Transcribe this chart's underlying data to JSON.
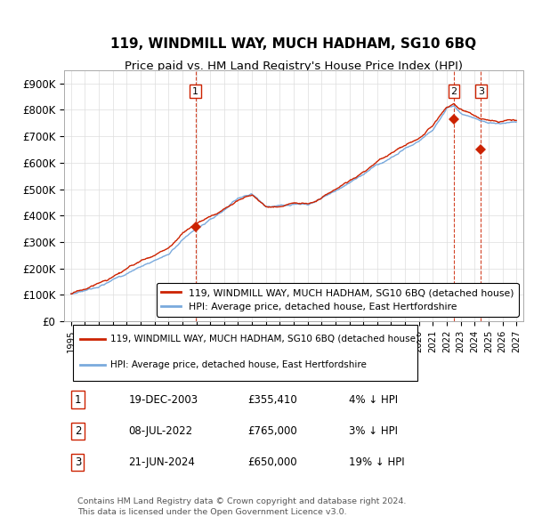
{
  "title": "119, WINDMILL WAY, MUCH HADHAM, SG10 6BQ",
  "subtitle": "Price paid vs. HM Land Registry's House Price Index (HPI)",
  "ylim": [
    0,
    950000
  ],
  "yticks": [
    0,
    100000,
    200000,
    300000,
    400000,
    500000,
    600000,
    700000,
    800000,
    900000
  ],
  "ytick_labels": [
    "£0",
    "£100K",
    "£200K",
    "£300K",
    "£400K",
    "£500K",
    "£600K",
    "£700K",
    "£800K",
    "£900K"
  ],
  "hpi_color": "#7aaadd",
  "price_color": "#cc2200",
  "background_color": "#ffffff",
  "grid_color": "#dddddd",
  "legend_label_price": "119, WINDMILL WAY, MUCH HADHAM, SG10 6BQ (detached house)",
  "legend_label_hpi": "HPI: Average price, detached house, East Hertfordshire",
  "transactions": [
    {
      "label": "1",
      "date": "19-DEC-2003",
      "price": 355410,
      "year": 2003.95,
      "hpi_note": "4% ↓ HPI"
    },
    {
      "label": "2",
      "date": "08-JUL-2022",
      "price": 765000,
      "year": 2022.52,
      "hpi_note": "3% ↓ HPI"
    },
    {
      "label": "3",
      "date": "21-JUN-2024",
      "price": 650000,
      "year": 2024.46,
      "hpi_note": "19% ↓ HPI"
    }
  ],
  "footer_line1": "Contains HM Land Registry data © Crown copyright and database right 2024.",
  "footer_line2": "This data is licensed under the Open Government Licence v3.0."
}
